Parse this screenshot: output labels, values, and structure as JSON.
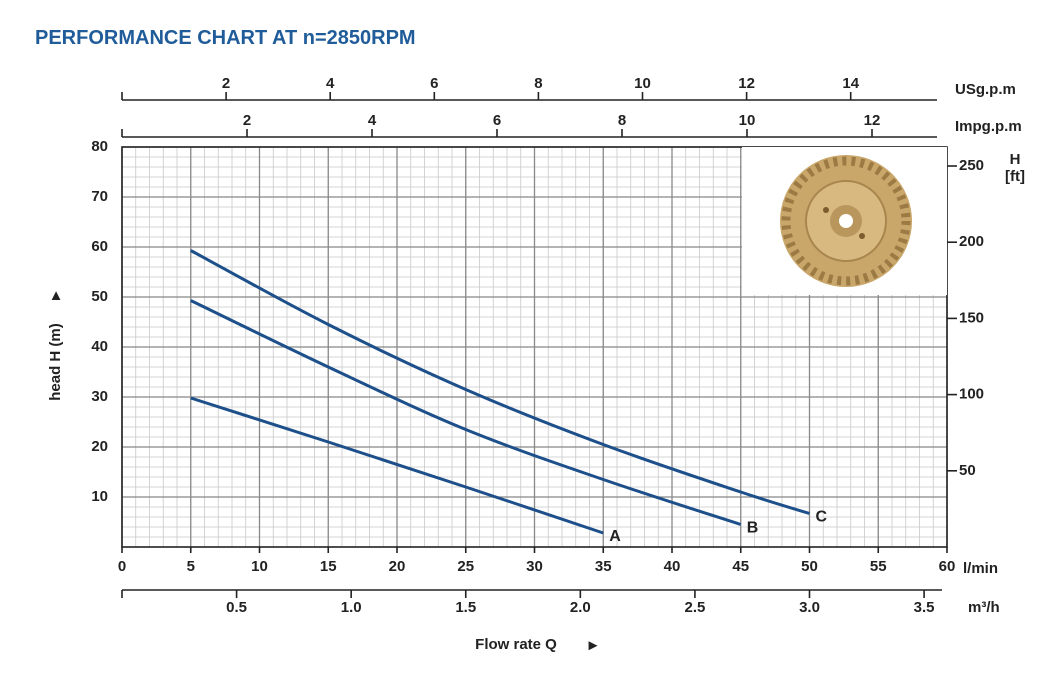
{
  "chart_data": {
    "type": "line",
    "title": "PERFORMANCE CHART AT n=2850RPM",
    "y_label": "head H (m)",
    "y_arrow": "▲",
    "x_label": "Flow rate Q",
    "x_arrow": "►",
    "x_unit": "l/min",
    "xlim": [
      0,
      60
    ],
    "xticks": [
      0,
      5,
      10,
      15,
      20,
      25,
      30,
      35,
      40,
      45,
      50,
      55,
      60
    ],
    "ylim": [
      0,
      80
    ],
    "yticks": [
      10,
      20,
      30,
      40,
      50,
      60,
      70,
      80
    ],
    "y2_label": "H",
    "y2_unit": "[ft]",
    "y2lim": [
      0,
      262.47
    ],
    "y2ticks": [
      50,
      100,
      150,
      200,
      250
    ],
    "grid": true,
    "secondary_x_axes": [
      {
        "unit": "USg.p.m",
        "position": "top",
        "lim": [
          0,
          15.85
        ],
        "ticks": [
          2,
          4,
          6,
          8,
          10,
          12,
          14
        ]
      },
      {
        "unit": "Impg.p.m",
        "position": "top",
        "lim": [
          0,
          13.2
        ],
        "ticks": [
          2,
          4,
          6,
          8,
          10,
          12
        ]
      },
      {
        "unit": "m³/h",
        "position": "bottom",
        "lim": [
          0,
          3.6
        ],
        "ticks": [
          0.5,
          {
            "value": 1,
            "label": "1.0"
          },
          1.5,
          {
            "value": 2,
            "label": "2.0"
          },
          2.5,
          {
            "value": 3,
            "label": "3.0"
          },
          3.5
        ]
      }
    ],
    "series": [
      {
        "name": "A",
        "color": "#1d4f8a",
        "x": [
          5,
          15,
          25,
          35
        ],
        "values": [
          29.8,
          21,
          12,
          2.8
        ]
      },
      {
        "name": "B",
        "color": "#1d4f8a",
        "x": [
          5,
          15,
          25,
          35,
          45
        ],
        "values": [
          49.3,
          36,
          23.5,
          13.5,
          4.5
        ]
      },
      {
        "name": "C",
        "color": "#1d4f8a",
        "x": [
          5,
          15,
          25,
          35,
          45,
          50
        ],
        "values": [
          59.3,
          44.5,
          31.5,
          20.5,
          11,
          6.7
        ]
      }
    ]
  }
}
